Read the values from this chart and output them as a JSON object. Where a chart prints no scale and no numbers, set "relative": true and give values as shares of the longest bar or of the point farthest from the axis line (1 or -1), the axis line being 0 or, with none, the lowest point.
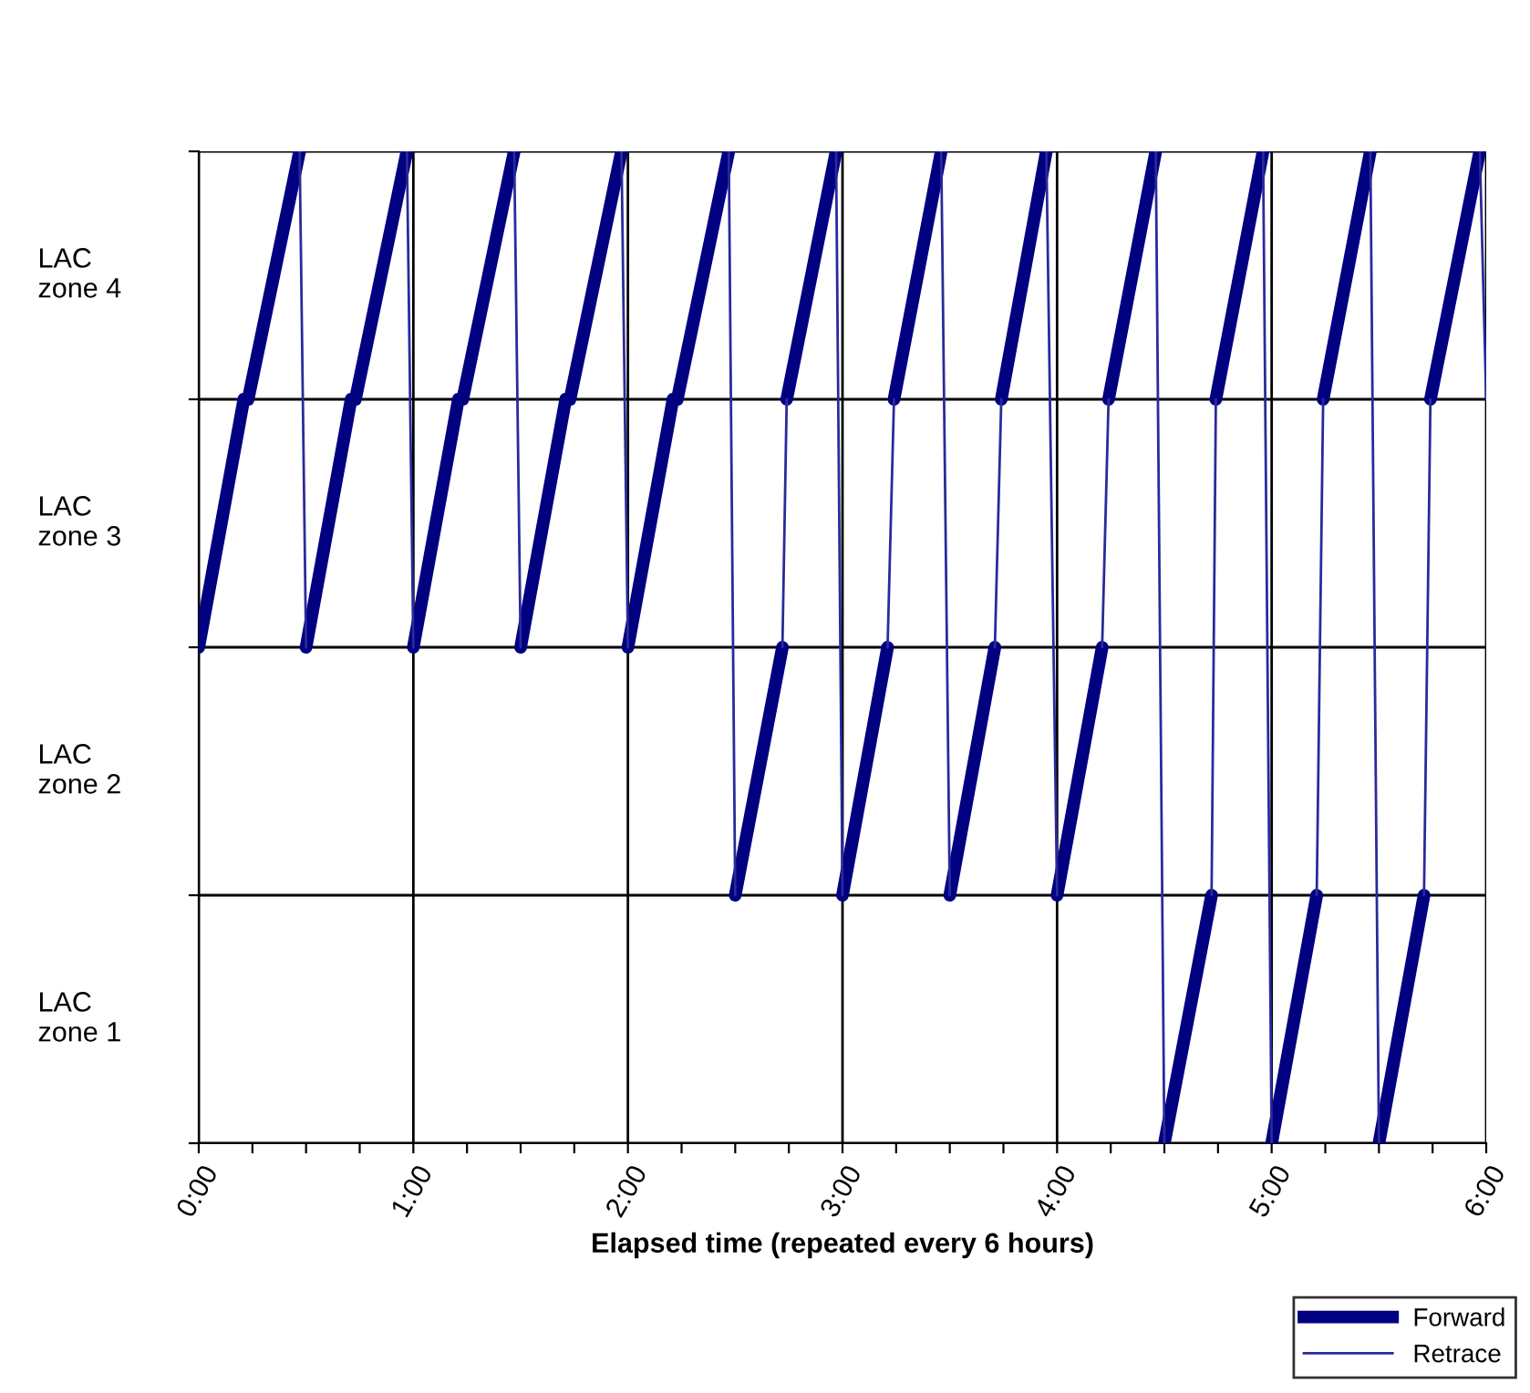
{
  "chart_data": {
    "type": "line",
    "xlabel": "Elapsed time (repeated every 6 hours)",
    "annotations": [
      "LAC\nzone 4",
      "LAC\nzone 3",
      "LAC\nzone 2",
      "LAC\nzone 1"
    ],
    "relative": true,
    "xlim": [
      0,
      6
    ],
    "xticks": [
      {
        "value": 0,
        "label": "0:00"
      },
      {
        "value": 0.25,
        "label": null
      },
      {
        "value": 0.5,
        "label": null
      },
      {
        "value": 0.75,
        "label": null
      },
      {
        "value": 1,
        "label": "1:00"
      },
      {
        "value": 1.25,
        "label": null
      },
      {
        "value": 1.5,
        "label": null
      },
      {
        "value": 1.75,
        "label": null
      },
      {
        "value": 2,
        "label": "2:00"
      },
      {
        "value": 2.25,
        "label": null
      },
      {
        "value": 2.5,
        "label": null
      },
      {
        "value": 2.75,
        "label": null
      },
      {
        "value": 3,
        "label": "3:00"
      },
      {
        "value": 3.25,
        "label": null
      },
      {
        "value": 3.5,
        "label": null
      },
      {
        "value": 3.75,
        "label": null
      },
      {
        "value": 4,
        "label": "4:00"
      },
      {
        "value": 4.25,
        "label": null
      },
      {
        "value": 4.5,
        "label": null
      },
      {
        "value": 4.75,
        "label": null
      },
      {
        "value": 5,
        "label": "5:00"
      },
      {
        "value": 5.25,
        "label": null
      },
      {
        "value": 5.5,
        "label": null
      },
      {
        "value": 5.75,
        "label": null
      },
      {
        "value": 6,
        "label": "6:00"
      }
    ],
    "grid": true,
    "legend": "bottom right",
    "series": [
      {
        "name": "Forward",
        "color": "#000080",
        "x": [
          0,
          0.21,
          0.23,
          0.47,
          null,
          0.5,
          0.71,
          0.73,
          0.97,
          null,
          1,
          1.21,
          1.23,
          1.47,
          null,
          1.5,
          1.71,
          1.73,
          1.97,
          null,
          2,
          2.21,
          2.23,
          2.47,
          null,
          2.5,
          2.72,
          null,
          2.74,
          2.97,
          null,
          3,
          3.21,
          null,
          3.24,
          3.46,
          null,
          3.5,
          3.71,
          null,
          3.74,
          3.95,
          null,
          4,
          4.21,
          null,
          4.24,
          4.46,
          null,
          4.5,
          4.72,
          null,
          4.74,
          4.96,
          null,
          5,
          5.21,
          null,
          5.24,
          5.46,
          null,
          5.5,
          5.71,
          null,
          5.74,
          5.97
        ],
        "values": [
          0.5,
          0.75,
          0.75,
          1,
          null,
          0.5,
          0.75,
          0.75,
          1,
          null,
          0.5,
          0.75,
          0.75,
          1,
          null,
          0.5,
          0.75,
          0.75,
          1,
          null,
          0.5,
          0.75,
          0.75,
          1,
          null,
          0.25,
          0.5,
          null,
          0.75,
          1,
          null,
          0.25,
          0.5,
          null,
          0.75,
          1,
          null,
          0.25,
          0.5,
          null,
          0.75,
          1,
          null,
          0.25,
          0.5,
          null,
          0.75,
          1,
          null,
          0,
          0.25,
          null,
          0.75,
          1,
          null,
          0,
          0.25,
          null,
          0.75,
          1,
          null,
          0,
          0.25,
          null,
          0.75,
          1
        ]
      },
      {
        "name": "Retrace",
        "color": "#2a2a9c",
        "x": [
          0.47,
          0.5,
          null,
          0.97,
          1,
          null,
          1.47,
          1.5,
          null,
          1.97,
          2,
          null,
          2.47,
          2.5,
          null,
          2.72,
          2.74,
          null,
          2.97,
          3,
          null,
          3.21,
          3.24,
          null,
          3.46,
          3.5,
          null,
          3.71,
          3.74,
          null,
          3.95,
          4,
          null,
          4.21,
          4.24,
          null,
          4.46,
          4.5,
          null,
          4.72,
          4.74,
          null,
          4.96,
          5,
          null,
          5.21,
          5.24,
          null,
          5.46,
          5.5,
          null,
          5.71,
          5.74,
          null,
          5.97,
          6
        ],
        "values": [
          1,
          0.5,
          null,
          1,
          0.5,
          null,
          1,
          0.5,
          null,
          1,
          0.5,
          null,
          1,
          0.25,
          null,
          0.5,
          0.75,
          null,
          1,
          0.25,
          null,
          0.5,
          0.75,
          null,
          1,
          0.25,
          null,
          0.5,
          0.75,
          null,
          1,
          0.25,
          null,
          0.5,
          0.75,
          null,
          1,
          0,
          null,
          0.25,
          0.75,
          null,
          1,
          0,
          null,
          0.25,
          0.75,
          null,
          1,
          0,
          null,
          0.25,
          0.75,
          null,
          1,
          0.75
        ]
      }
    ]
  }
}
